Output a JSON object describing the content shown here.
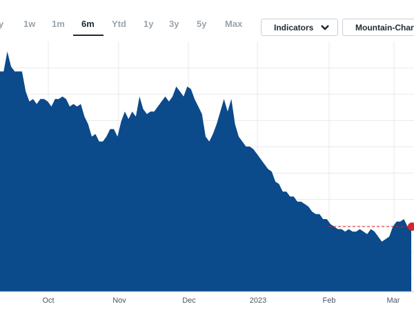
{
  "range_tabs": [
    {
      "label": "y",
      "active": false
    },
    {
      "label": "1w",
      "active": false
    },
    {
      "label": "1m",
      "active": false
    },
    {
      "label": "6m",
      "active": true
    },
    {
      "label": "Ytd",
      "active": false
    },
    {
      "label": "1y",
      "active": false
    },
    {
      "label": "3y",
      "active": false
    },
    {
      "label": "5y",
      "active": false
    },
    {
      "label": "Max",
      "active": false
    }
  ],
  "toolbar": {
    "indicators_label": "Indicators",
    "chart_type_label": "Mountain-Chart",
    "dropdown_icon": "chevron-down-icon"
  },
  "colors": {
    "area_fill": "#0b4a8b",
    "marker": "#d8232a",
    "reference_line": "#d8232a",
    "grid": "#e6e9ec"
  },
  "chart_data": {
    "type": "area",
    "x_tick_labels": [
      "Oct",
      "Nov",
      "Dec",
      "2023",
      "Feb",
      "Mar"
    ],
    "values": [
      88,
      88,
      96,
      90,
      88,
      88,
      88,
      80,
      76,
      77,
      75,
      77,
      77,
      76,
      74,
      77,
      77,
      78,
      77,
      74,
      75,
      74,
      75,
      70,
      67,
      62,
      63,
      60,
      60,
      62,
      65,
      65,
      62,
      68,
      72,
      69,
      72,
      70,
      78,
      73,
      71,
      72,
      72,
      74,
      76,
      78,
      76,
      78,
      82,
      80,
      78,
      82,
      81,
      77,
      74,
      71,
      62,
      60,
      63,
      67,
      72,
      77,
      72,
      77,
      67,
      62,
      60,
      58,
      58,
      57,
      55,
      53,
      51,
      49,
      48,
      44,
      43,
      40,
      40,
      38,
      38,
      36,
      36,
      35,
      34,
      32,
      31,
      31,
      29,
      29,
      27,
      26,
      25,
      25,
      24,
      25,
      24,
      24,
      25,
      24,
      23,
      25,
      24,
      22,
      20,
      21,
      22,
      26,
      28,
      28,
      29,
      26,
      26
    ],
    "last_value": 26,
    "reference_value": 26,
    "ylim": [
      0,
      100
    ],
    "grid": true,
    "marker_on_last_value": true
  }
}
